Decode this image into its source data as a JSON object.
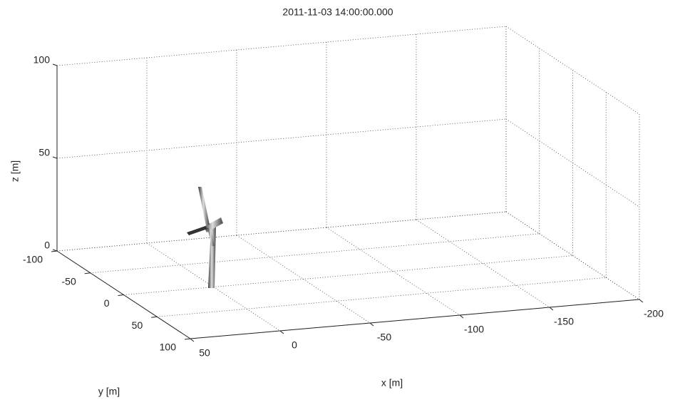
{
  "chart_data": {
    "type": "box3d",
    "title": "2011-11-03 14:00:00.000",
    "xlabel": "x [m]",
    "ylabel": "y [m]",
    "zlabel": "z [m]",
    "xlim": [
      -200,
      50
    ],
    "xreverse": true,
    "xticks": [
      50,
      0,
      -50,
      -100,
      -150,
      -200
    ],
    "ylim": [
      -100,
      100
    ],
    "yticks": [
      -100,
      -50,
      0,
      50,
      100
    ],
    "zlim": [
      0,
      100
    ],
    "zticks": [
      0,
      50,
      100
    ],
    "grid": true
  }
}
